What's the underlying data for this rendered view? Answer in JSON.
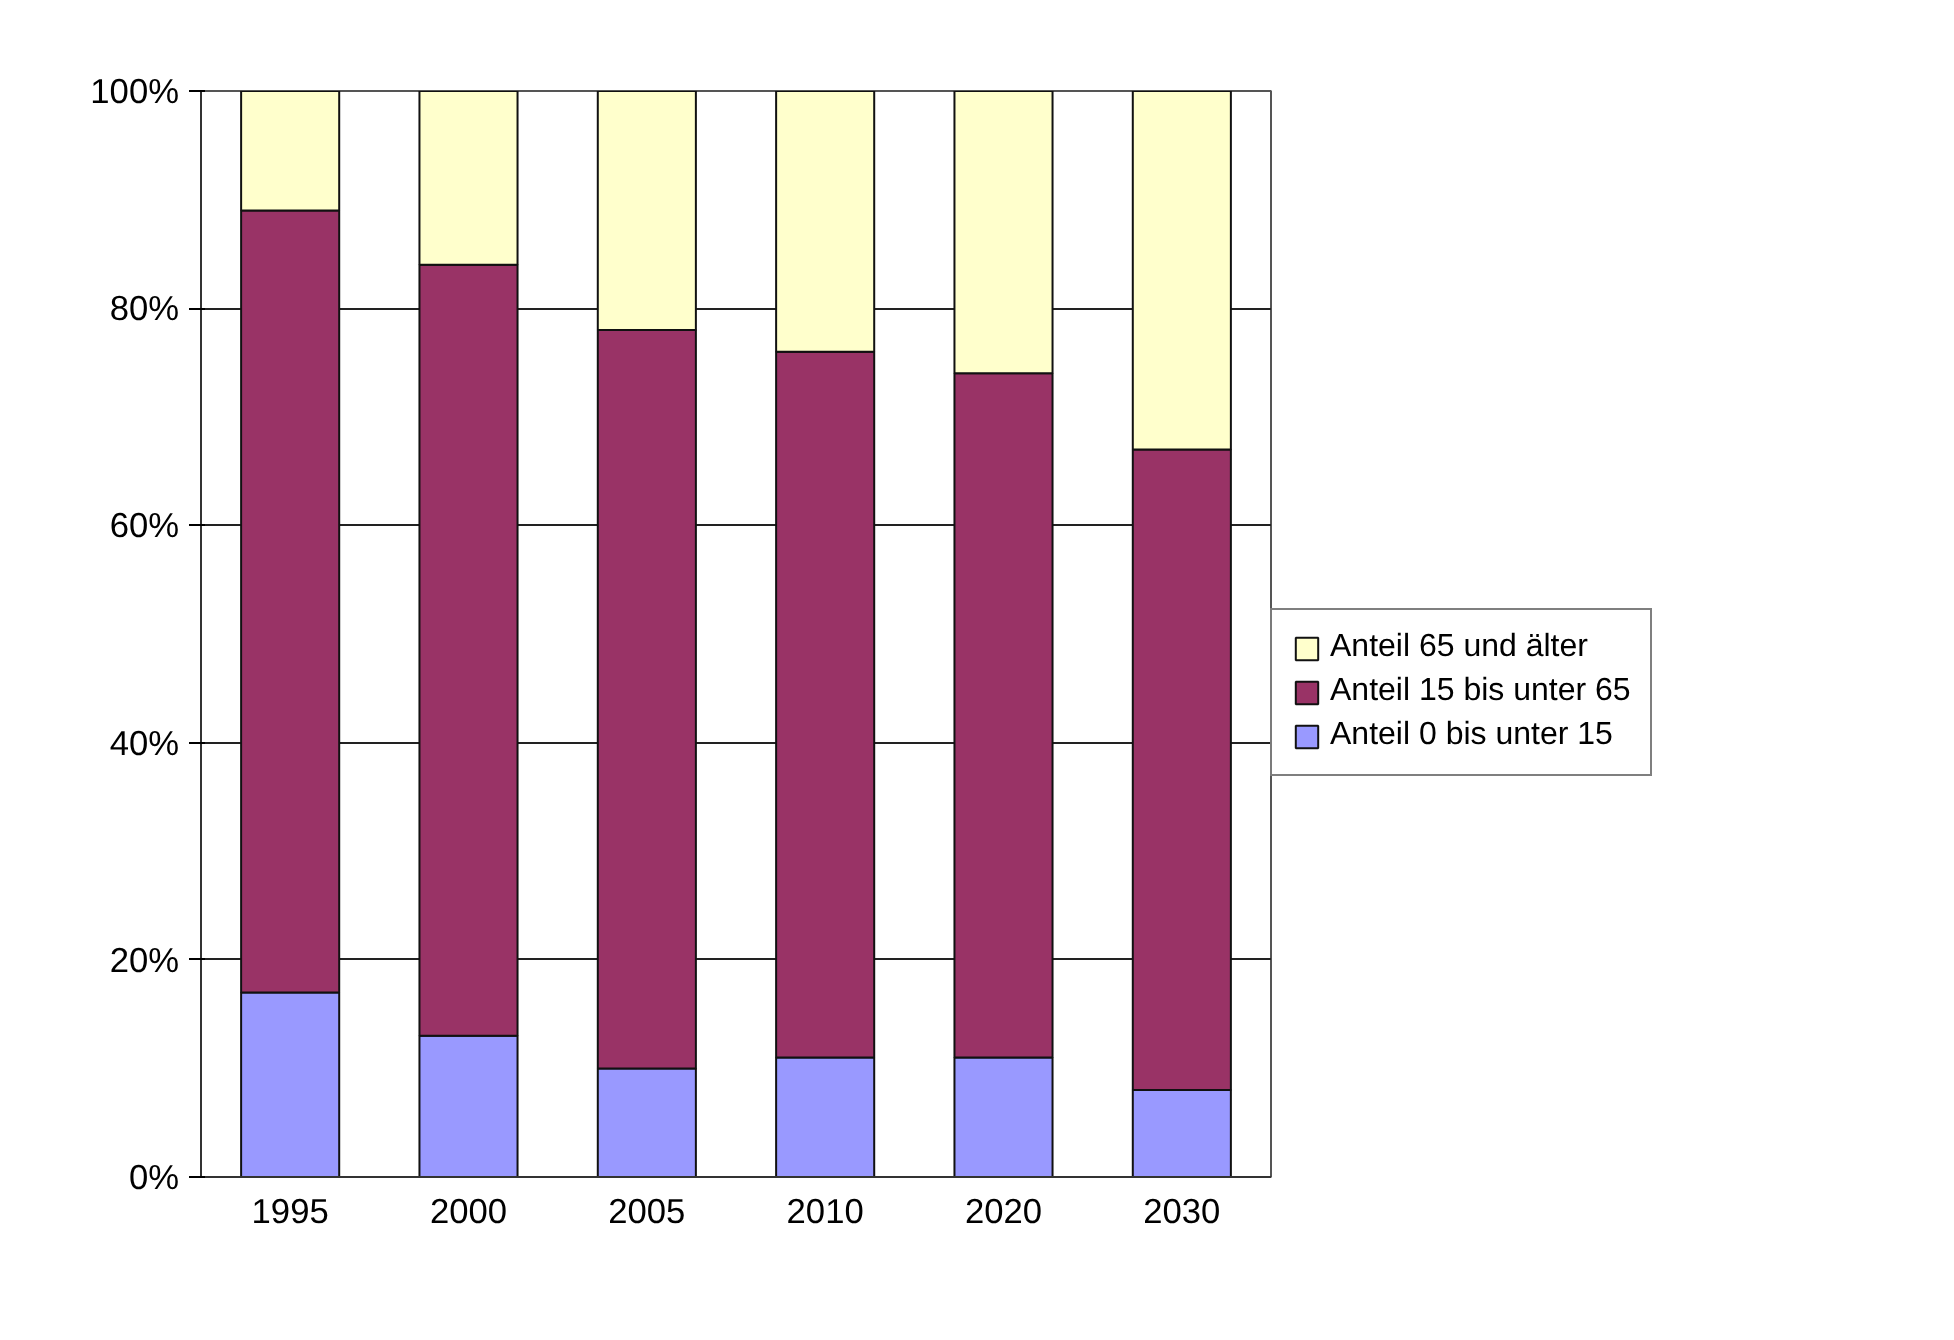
{
  "chart_data": {
    "type": "bar",
    "stacked": true,
    "categories": [
      "1995",
      "2000",
      "2005",
      "2010",
      "2020",
      "2030"
    ],
    "series": [
      {
        "name": "Anteil 0 bis unter 15",
        "color": "#9999ff",
        "values": [
          17,
          13,
          10,
          11,
          11,
          8
        ]
      },
      {
        "name": "Anteil 15 bis unter 65",
        "color": "#993366",
        "values": [
          72,
          71,
          68,
          65,
          63,
          59
        ]
      },
      {
        "name": "Anteil 65 und älter",
        "color": "#ffffcc",
        "values": [
          11,
          16,
          22,
          24,
          26,
          33
        ]
      }
    ],
    "ylim": [
      0,
      100
    ],
    "yticks": [
      {
        "value": 0,
        "label": "0%"
      },
      {
        "value": 20,
        "label": "20%"
      },
      {
        "value": 40,
        "label": "40%"
      },
      {
        "value": 60,
        "label": "60%"
      },
      {
        "value": 80,
        "label": "80%"
      },
      {
        "value": 100,
        "label": "100%"
      }
    ],
    "grid": "y",
    "legend": "right"
  }
}
